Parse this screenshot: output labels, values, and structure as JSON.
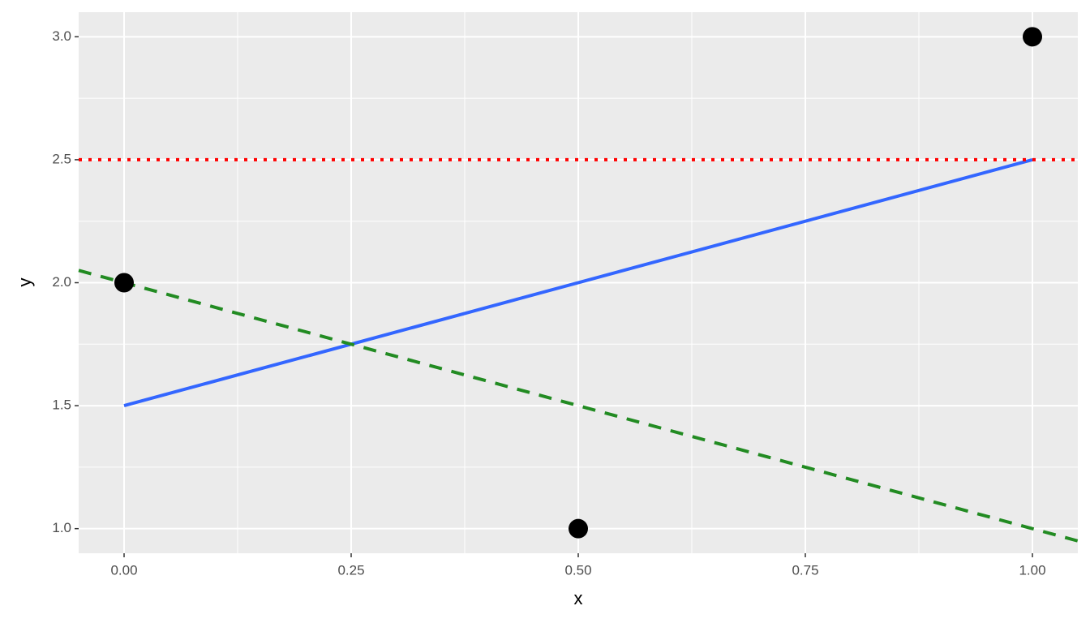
{
  "chart_data": {
    "type": "scatter",
    "xlabel": "x",
    "ylabel": "y",
    "xlim": [
      -0.05,
      1.05
    ],
    "ylim": [
      0.9,
      3.1
    ],
    "xticks": [
      {
        "value": 0,
        "label": "0.00"
      },
      {
        "value": 0.25,
        "label": "0.25"
      },
      {
        "value": 0.5,
        "label": "0.50"
      },
      {
        "value": 0.75,
        "label": "0.75"
      },
      {
        "value": 1,
        "label": "1.00"
      }
    ],
    "yticks": [
      {
        "value": 1,
        "label": "1.0"
      },
      {
        "value": 1.5,
        "label": "1.5"
      },
      {
        "value": 2,
        "label": "2.0"
      },
      {
        "value": 2.5,
        "label": "2.5"
      },
      {
        "value": 3,
        "label": "3.0"
      }
    ],
    "xminorticks": [
      0.125,
      0.375,
      0.625,
      0.875
    ],
    "yminorticks": [
      1.25,
      1.75,
      2.25,
      2.75
    ],
    "grid": true,
    "series": [
      {
        "type": "scatter",
        "color": "#000000",
        "x": [
          0,
          0.5,
          1
        ],
        "values": [
          2,
          1,
          3
        ]
      },
      {
        "type": "line",
        "linestyle": "solid",
        "color": "#3366ff",
        "x": [
          0,
          1
        ],
        "values": [
          1.5,
          2.5
        ]
      },
      {
        "type": "line",
        "linestyle": "dashed",
        "color": "#228b22",
        "x": [
          -0.05,
          1.05
        ],
        "values": [
          2.05,
          0.95
        ]
      },
      {
        "type": "line",
        "linestyle": "dotted",
        "color": "#ff0000",
        "x": [
          -0.05,
          1.05
        ],
        "values": [
          2.5,
          2.5
        ]
      }
    ]
  }
}
